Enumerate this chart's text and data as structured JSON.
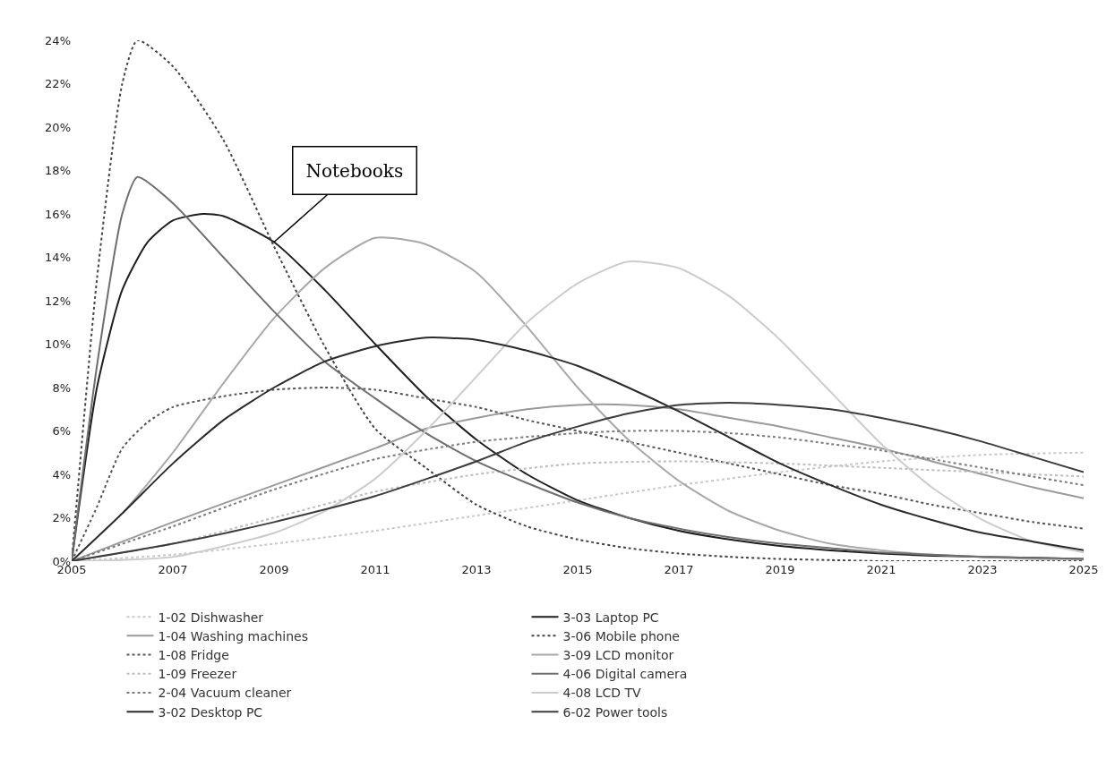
{
  "chart_data": {
    "type": "line",
    "xlim": [
      2005,
      2025
    ],
    "ylim": [
      0,
      24
    ],
    "xticks": [
      2005,
      2007,
      2009,
      2011,
      2013,
      2015,
      2017,
      2019,
      2021,
      2023,
      2025
    ],
    "yticks": [
      {
        "value": 0,
        "label": "0%"
      },
      {
        "value": 2,
        "label": "2%"
      },
      {
        "value": 4,
        "label": "4%"
      },
      {
        "value": 6,
        "label": "6%"
      },
      {
        "value": 8,
        "label": "8%"
      },
      {
        "value": 10,
        "label": "10%"
      },
      {
        "value": 12,
        "label": "12%"
      },
      {
        "value": 14,
        "label": "14%"
      },
      {
        "value": 16,
        "label": "16%"
      },
      {
        "value": 18,
        "label": "18%"
      },
      {
        "value": 20,
        "label": "20%"
      },
      {
        "value": 22,
        "label": "22%"
      },
      {
        "value": 24,
        "label": "24%"
      }
    ],
    "grid": false,
    "legend": "bottom",
    "marker": "none",
    "annotations": [
      {
        "text": "Notebooks",
        "x": 2009,
        "y": 14.7
      }
    ],
    "series": [
      {
        "name": "1-02 Dishwasher",
        "color": "#c8c8c8",
        "line_style": "dotted",
        "x": [
          2005,
          2007,
          2009,
          2011,
          2013,
          2015,
          2017,
          2019,
          2021,
          2023,
          2025
        ],
        "values": [
          0,
          0.3,
          0.8,
          1.4,
          2.1,
          2.8,
          3.5,
          4.1,
          4.6,
          4.9,
          5.0
        ]
      },
      {
        "name": "3-03 Laptop PC",
        "color": "#1e1e1e",
        "line_style": "solid",
        "x": [
          2005,
          2005.5,
          2006,
          2006.5,
          2007,
          2007.6,
          2008,
          2009,
          2010,
          2011,
          2012,
          2013,
          2014,
          2015,
          2016,
          2017,
          2018,
          2019,
          2020,
          2021,
          2022,
          2023,
          2024,
          2025
        ],
        "values": [
          0,
          8,
          12.5,
          14.7,
          15.7,
          16,
          15.9,
          14.7,
          12.5,
          10,
          7.6,
          5.6,
          4.0,
          2.8,
          2.0,
          1.4,
          1.0,
          0.7,
          0.5,
          0.35,
          0.25,
          0.2,
          0.15,
          0.1
        ]
      },
      {
        "name": "1-04 Washing machines",
        "color": "#9a9a9a",
        "line_style": "solid",
        "x": [
          2005,
          2007,
          2009,
          2011,
          2012,
          2013,
          2014,
          2015,
          2016,
          2017,
          2018,
          2019,
          2020,
          2021,
          2022,
          2023,
          2024,
          2025
        ],
        "values": [
          0,
          1.8,
          3.5,
          5.2,
          6.1,
          6.6,
          7.0,
          7.2,
          7.2,
          7.0,
          6.6,
          6.2,
          5.7,
          5.2,
          4.6,
          4.0,
          3.4,
          2.9
        ]
      },
      {
        "name": "3-06 Mobile phone",
        "color": "#444444",
        "line_style": "dotted",
        "x": [
          2005,
          2005.5,
          2006,
          2006.3,
          2007,
          2008,
          2009,
          2010,
          2011,
          2012,
          2013,
          2014,
          2015,
          2016,
          2017,
          2018,
          2019,
          2020,
          2021,
          2023,
          2025
        ],
        "values": [
          0,
          13,
          22,
          24,
          22.8,
          19.4,
          14.5,
          9.9,
          6.1,
          4.3,
          2.6,
          1.6,
          1.0,
          0.6,
          0.35,
          0.2,
          0.1,
          0.05,
          0,
          0,
          0
        ]
      },
      {
        "name": "1-08 Fridge",
        "color": "#555555",
        "line_style": "dotted",
        "x": [
          2005,
          2005.5,
          2006,
          2006.5,
          2007,
          2008,
          2009,
          2010,
          2011,
          2012,
          2013,
          2014,
          2015,
          2016,
          2017,
          2018,
          2019,
          2020,
          2021,
          2022,
          2023,
          2024,
          2025
        ],
        "values": [
          0,
          2.5,
          5.2,
          6.4,
          7.1,
          7.6,
          7.9,
          8.0,
          7.9,
          7.5,
          7.1,
          6.5,
          6.0,
          5.5,
          5.0,
          4.5,
          4.0,
          3.5,
          3.1,
          2.6,
          2.2,
          1.8,
          1.5
        ]
      },
      {
        "name": "3-09 LCD monitor",
        "color": "#a8a8a8",
        "line_style": "solid",
        "x": [
          2005,
          2006,
          2007,
          2008,
          2009,
          2010,
          2011,
          2012,
          2013,
          2014,
          2015,
          2016,
          2017,
          2018,
          2019,
          2020,
          2021,
          2022,
          2023,
          2024,
          2025
        ],
        "values": [
          0,
          2.2,
          5,
          8.2,
          11.2,
          13.5,
          14.9,
          14.6,
          13.3,
          10.8,
          8,
          5.6,
          3.7,
          2.3,
          1.4,
          0.8,
          0.5,
          0.3,
          0.2,
          0.1,
          0.1
        ]
      },
      {
        "name": "1-09 Freezer",
        "color": "#bcbcbc",
        "line_style": "dotted",
        "x": [
          2005,
          2007,
          2009,
          2011,
          2013,
          2015,
          2017,
          2019,
          2021,
          2023,
          2025
        ],
        "values": [
          0,
          0.8,
          2.0,
          3.2,
          4.0,
          4.5,
          4.6,
          4.5,
          4.3,
          4.1,
          3.9
        ]
      },
      {
        "name": "4-06 Digital camera",
        "color": "#6e6e6e",
        "line_style": "solid",
        "x": [
          2005,
          2005.5,
          2006,
          2006.3,
          2007,
          2008,
          2009,
          2010,
          2011,
          2012,
          2013,
          2014,
          2015,
          2016,
          2017,
          2018,
          2019,
          2020,
          2021,
          2022,
          2023,
          2024,
          2025
        ],
        "values": [
          0,
          9,
          16,
          17.7,
          16.5,
          14,
          11.5,
          9.2,
          7.5,
          5.9,
          4.6,
          3.6,
          2.7,
          2.0,
          1.5,
          1.1,
          0.8,
          0.6,
          0.4,
          0.3,
          0.2,
          0.15,
          0.1
        ]
      },
      {
        "name": "2-04 Vacuum cleaner",
        "color": "#7a7a7a",
        "line_style": "dotted",
        "x": [
          2005,
          2007,
          2009,
          2011,
          2013,
          2015,
          2016,
          2017,
          2018,
          2019,
          2020,
          2021,
          2022,
          2023,
          2024,
          2025
        ],
        "values": [
          0,
          1.6,
          3.3,
          4.7,
          5.5,
          5.9,
          6.0,
          6.0,
          5.9,
          5.7,
          5.4,
          5.1,
          4.7,
          4.3,
          3.9,
          3.5
        ]
      },
      {
        "name": "4-08 LCD TV",
        "color": "#cccccc",
        "line_style": "solid",
        "x": [
          2005,
          2007,
          2009,
          2010,
          2011,
          2012,
          2013,
          2014,
          2015,
          2016,
          2017,
          2018,
          2019,
          2020,
          2021,
          2022,
          2023,
          2024,
          2025
        ],
        "values": [
          0,
          0.2,
          1.3,
          2.3,
          3.8,
          6,
          8.5,
          11,
          12.8,
          13.8,
          13.5,
          12.2,
          10.2,
          7.8,
          5.4,
          3.4,
          1.9,
          0.9,
          0.4
        ]
      },
      {
        "name": "3-02 Desktop PC",
        "color": "#2a2a2a",
        "line_style": "solid",
        "x": [
          2005,
          2006,
          2007,
          2008,
          2009,
          2010,
          2011,
          2012,
          2013,
          2014,
          2015,
          2016,
          2017,
          2018,
          2019,
          2020,
          2021,
          2022,
          2023,
          2024,
          2025
        ],
        "values": [
          0,
          2.2,
          4.5,
          6.5,
          8,
          9.2,
          9.9,
          10.3,
          10.2,
          9.7,
          9.0,
          8.0,
          6.9,
          5.7,
          4.5,
          3.5,
          2.6,
          1.9,
          1.3,
          0.9,
          0.5
        ]
      },
      {
        "name": "6-02 Power tools",
        "color": "#3c3c3c",
        "line_style": "solid",
        "x": [
          2005,
          2007,
          2009,
          2011,
          2013,
          2014,
          2015,
          2016,
          2017,
          2018,
          2019,
          2020,
          2021,
          2022,
          2023,
          2024,
          2025
        ],
        "values": [
          0,
          0.8,
          1.8,
          3.0,
          4.6,
          5.5,
          6.2,
          6.8,
          7.2,
          7.3,
          7.2,
          7.0,
          6.6,
          6.1,
          5.5,
          4.8,
          4.1
        ]
      }
    ]
  }
}
